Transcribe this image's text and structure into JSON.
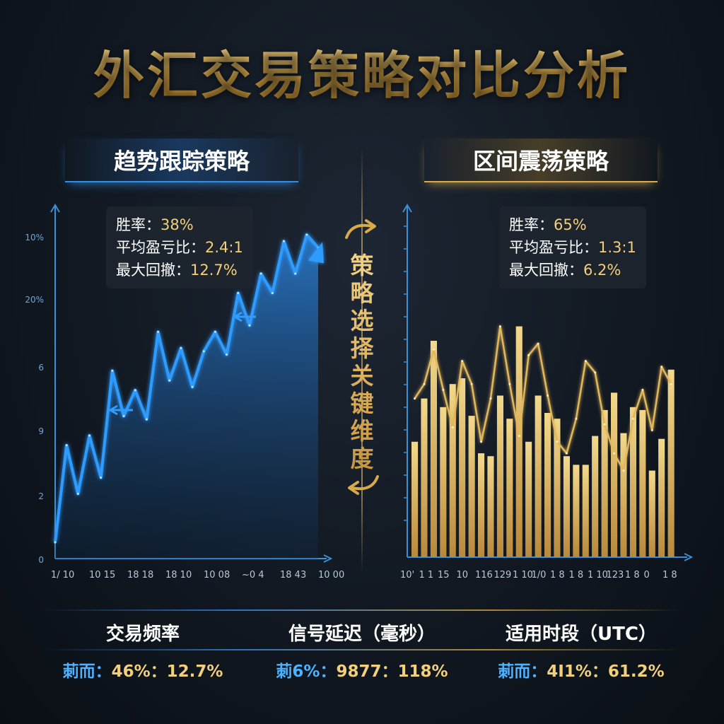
{
  "title": "外汇交易策略对比分析",
  "center_label": "策略选择关键维度",
  "colors": {
    "blue": "#2f9cff",
    "gold": "#e3b85c",
    "gold_bar": "#d8b265",
    "title_gold": "#d9b15e"
  },
  "left_panel": {
    "header": "趋势跟踪策略",
    "stats": [
      {
        "label": "胜率：",
        "value": "38%"
      },
      {
        "label": "平均盈亏比：",
        "value": "2.4:1"
      },
      {
        "label": "最大回撤：",
        "value": "12.7%"
      }
    ]
  },
  "right_panel": {
    "header": "区间震荡策略",
    "stats": [
      {
        "label": "胜率：",
        "value": "65%"
      },
      {
        "label": "平均盈亏比：",
        "value": "1.3:1"
      },
      {
        "label": "最大回撤：",
        "value": "6.2%"
      }
    ]
  },
  "chart_data": [
    {
      "type": "area",
      "title": "趋势跟踪策略",
      "y_tick_labels": [
        "10%",
        "20%",
        "6",
        "9",
        "2",
        "0"
      ],
      "x_tick_labels": [
        "1/ 10",
        "10 15",
        "18 18",
        "18 10",
        "10 08",
        "~0 4",
        "18 43",
        "10 00"
      ],
      "x": [
        0,
        1,
        2,
        3,
        4,
        5,
        6,
        7,
        8,
        9,
        10,
        11,
        12,
        13,
        14,
        15,
        16,
        17,
        18,
        19,
        20,
        21,
        22,
        23
      ],
      "values": [
        5,
        35,
        20,
        38,
        25,
        58,
        44,
        52,
        43,
        70,
        55,
        65,
        53,
        64,
        70,
        63,
        82,
        72,
        88,
        82,
        98,
        88,
        100,
        96
      ],
      "grid": false
    },
    {
      "type": "bar",
      "title": "区间震荡策略",
      "x_tick_labels": [
        "10'",
        "1 1",
        "15",
        "10",
        "116",
        "129",
        "1 10",
        "1/0",
        "1 8",
        "1 8",
        "1 10",
        "123",
        "1 8",
        "0",
        "1 8"
      ],
      "values": [
        40,
        55,
        75,
        52,
        60,
        62,
        49,
        36,
        35,
        56,
        48,
        80,
        40,
        56,
        50,
        48,
        35,
        32,
        32,
        42,
        51,
        57,
        43,
        52,
        51,
        30,
        41,
        65
      ],
      "series": [
        {
          "type": "line",
          "values": [
            55,
            60,
            72,
            58,
            45,
            68,
            60,
            40,
            55,
            80,
            60,
            42,
            70,
            74,
            56,
            40,
            36,
            48,
            68,
            64,
            46,
            36,
            30,
            48,
            58,
            44,
            66,
            60
          ]
        }
      ],
      "grid": false
    }
  ],
  "metrics": [
    {
      "label": "交易频率",
      "prefix": "莿而：",
      "value": "46%：12.7%"
    },
    {
      "label": "信号延迟（毫秒）",
      "prefix": "莿6%：",
      "value": "9877：118%"
    },
    {
      "label": "适用时段（UTC）",
      "prefix": "莿而：",
      "value": "4I1%：61.2%"
    }
  ]
}
